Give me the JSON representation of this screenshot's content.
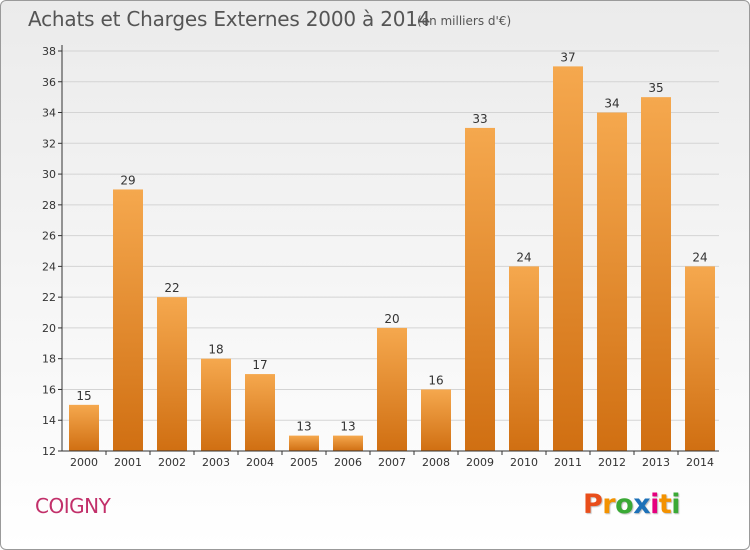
{
  "header": {
    "title": "Achats et Charges Externes 2000 à 2014",
    "subtitle": "(en milliers d'€)"
  },
  "footer": {
    "commune": "COIGNY",
    "logo_letters": [
      "P",
      "r",
      "o",
      "x",
      "i",
      "t",
      "i"
    ],
    "logo_colors": [
      "#e94e1b",
      "#f39200",
      "#3aa935",
      "#1d71b8",
      "#e5007e",
      "#f39200",
      "#3aa935"
    ]
  },
  "colors": {
    "bar_top": "#f5a84e",
    "bar_bottom": "#d06f12",
    "grid": "#d4d4d4",
    "axis": "#333333",
    "label": "#333333",
    "title": "#555555",
    "commune": "#c2306a"
  },
  "chart_data": {
    "type": "bar",
    "title": "Achats et Charges Externes 2000 à 2014",
    "subtitle": "(en milliers d'€)",
    "xlabel": "",
    "ylabel": "",
    "categories": [
      "2000",
      "2001",
      "2002",
      "2003",
      "2004",
      "2005",
      "2006",
      "2007",
      "2008",
      "2009",
      "2010",
      "2011",
      "2012",
      "2013",
      "2014"
    ],
    "values": [
      15,
      29,
      22,
      18,
      17,
      13,
      13,
      20,
      16,
      33,
      24,
      37,
      34,
      35,
      24
    ],
    "ylim": [
      12,
      38
    ],
    "yticks": [
      12,
      14,
      16,
      18,
      20,
      22,
      24,
      26,
      28,
      30,
      32,
      34,
      36,
      38
    ],
    "grid": true,
    "legend": "none",
    "data_labels": true
  }
}
